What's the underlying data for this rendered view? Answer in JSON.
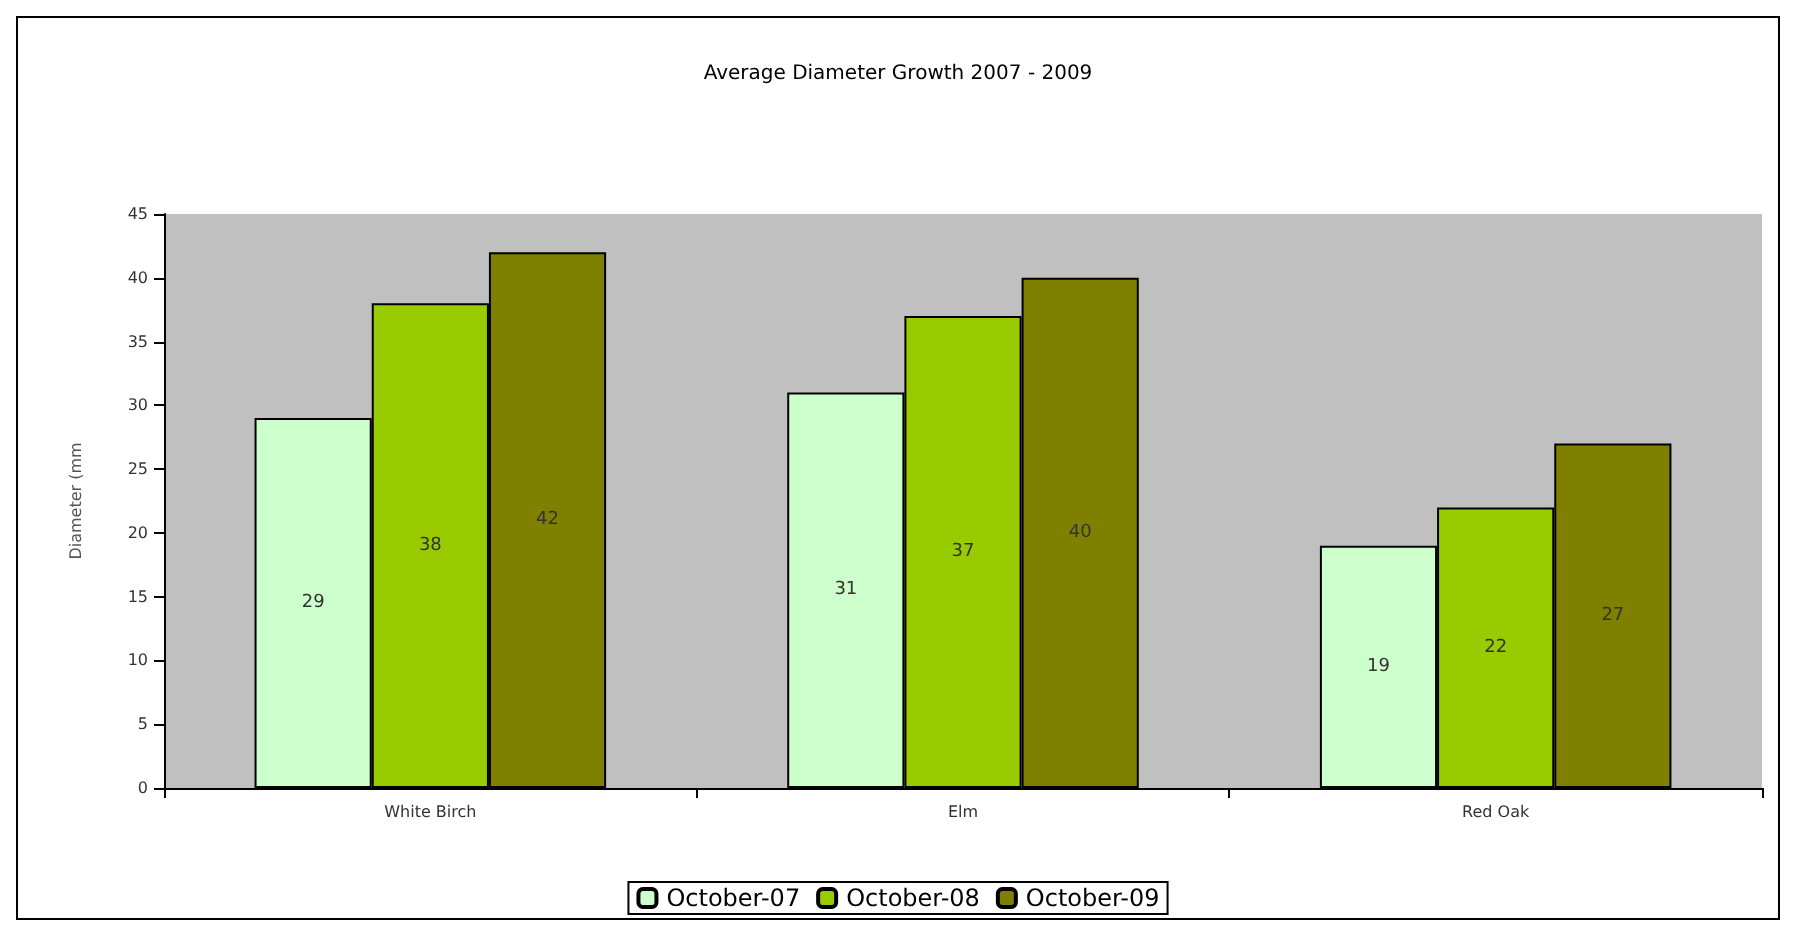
{
  "chart_data": {
    "type": "bar",
    "title": "Average Diameter Growth 2007 - 2009",
    "ylabel": "Diameter (mm",
    "categories": [
      "White Birch",
      "Elm",
      "Red Oak"
    ],
    "series": [
      {
        "name": "October-07",
        "color": "#ccffcc",
        "values": [
          29,
          31,
          19
        ]
      },
      {
        "name": "October-08",
        "color": "#99cc00",
        "values": [
          38,
          37,
          22
        ]
      },
      {
        "name": "October-09",
        "color": "#808000",
        "values": [
          42,
          40,
          27
        ]
      }
    ],
    "ylim": [
      0,
      45
    ],
    "yticks": [
      0,
      5,
      10,
      15,
      20,
      25,
      30,
      35,
      40,
      45
    ],
    "grid": false,
    "legend": "bottom",
    "data_labels": true
  }
}
